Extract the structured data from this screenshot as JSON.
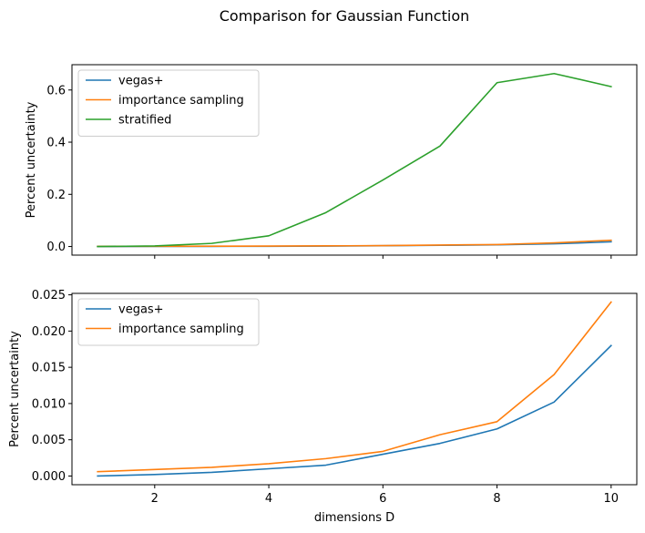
{
  "figure": {
    "title": "Comparison for Gaussian Function"
  },
  "colors": {
    "vegas": "#1f77b4",
    "importance": "#ff7f0e",
    "stratified": "#2ca02c"
  },
  "chart_data": [
    {
      "type": "line",
      "ylabel": "Percent uncertainty",
      "xlabel": "",
      "xlim": [
        0.55,
        10.45
      ],
      "ylim": [
        -0.033,
        0.697
      ],
      "xticks": [
        2,
        4,
        6,
        8,
        10
      ],
      "show_xtick_labels": false,
      "yticks": [
        0.0,
        0.2,
        0.4,
        0.6
      ],
      "ytick_labels": [
        "0.0",
        "0.2",
        "0.4",
        "0.6"
      ],
      "legend": "top-left",
      "x": [
        1,
        2,
        3,
        4,
        5,
        6,
        7,
        8,
        9,
        10
      ],
      "series": [
        {
          "name": "vegas+",
          "color": "#1f77b4",
          "values": [
            0.0,
            0.0002,
            0.0005,
            0.001,
            0.0015,
            0.003,
            0.0045,
            0.0065,
            0.0102,
            0.018
          ]
        },
        {
          "name": "importance sampling",
          "color": "#ff7f0e",
          "values": [
            0.0006,
            0.0009,
            0.0012,
            0.0017,
            0.0024,
            0.0034,
            0.0057,
            0.0075,
            0.014,
            0.024
          ]
        },
        {
          "name": "stratified",
          "color": "#2ca02c",
          "values": [
            0.0,
            0.002,
            0.012,
            0.041,
            0.13,
            0.255,
            0.385,
            0.628,
            0.663,
            0.613
          ]
        }
      ]
    },
    {
      "type": "line",
      "ylabel": "Percent uncertainty",
      "xlabel": "dimensions D",
      "xlim": [
        0.55,
        10.45
      ],
      "ylim": [
        -0.0012,
        0.0252
      ],
      "xticks": [
        2,
        4,
        6,
        8,
        10
      ],
      "xtick_labels": [
        "2",
        "4",
        "6",
        "8",
        "10"
      ],
      "show_xtick_labels": true,
      "yticks": [
        0.0,
        0.005,
        0.01,
        0.015,
        0.02,
        0.025
      ],
      "ytick_labels": [
        "0.000",
        "0.005",
        "0.010",
        "0.015",
        "0.020",
        "0.025"
      ],
      "legend": "top-left",
      "x": [
        1,
        2,
        3,
        4,
        5,
        6,
        7,
        8,
        9,
        10
      ],
      "series": [
        {
          "name": "vegas+",
          "color": "#1f77b4",
          "values": [
            0.0,
            0.0002,
            0.0005,
            0.001,
            0.0015,
            0.003,
            0.0045,
            0.0065,
            0.0102,
            0.018
          ]
        },
        {
          "name": "importance sampling",
          "color": "#ff7f0e",
          "values": [
            0.0006,
            0.0009,
            0.0012,
            0.0017,
            0.0024,
            0.0034,
            0.0057,
            0.0075,
            0.014,
            0.024
          ]
        }
      ]
    }
  ]
}
